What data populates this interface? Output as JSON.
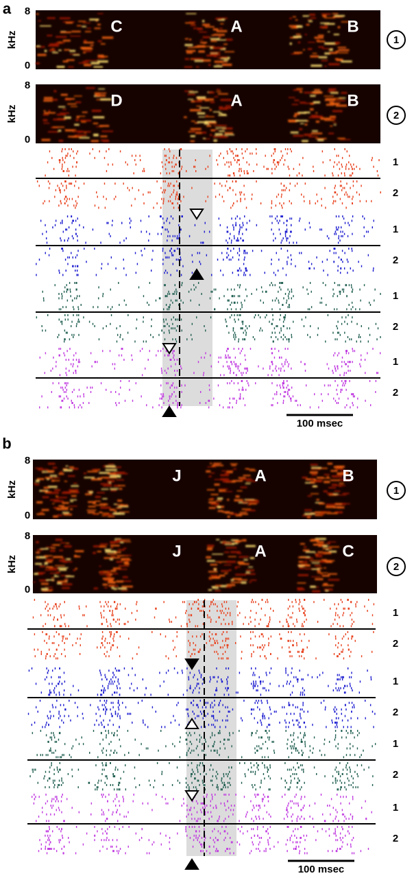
{
  "panels": [
    {
      "label": "a",
      "spectrograms": [
        {
          "axis_label": "kHz",
          "top": "8",
          "bottom": "0",
          "syllables": [
            "C",
            "A",
            "B"
          ],
          "stimulus": "1"
        },
        {
          "axis_label": "kHz",
          "top": "8",
          "bottom": "0",
          "syllables": [
            "D",
            "A",
            "B"
          ],
          "stimulus": "2"
        }
      ],
      "rasters": [
        {
          "rows": [
            "1",
            "2"
          ]
        },
        {
          "rows": [
            "1",
            "2"
          ]
        },
        {
          "rows": [
            "1",
            "2"
          ]
        },
        {
          "rows": [
            "1",
            "2"
          ]
        }
      ],
      "scale_bar": "100 msec"
    },
    {
      "label": "b",
      "spectrograms": [
        {
          "axis_label": "kHz",
          "top": "8",
          "bottom": "0",
          "syllables": [
            "J",
            "A",
            "B"
          ],
          "stimulus": "1"
        },
        {
          "axis_label": "kHz",
          "top": "8",
          "bottom": "0",
          "syllables": [
            "J",
            "A",
            "C"
          ],
          "stimulus": "2"
        }
      ],
      "rasters": [
        {
          "rows": [
            "1",
            "2"
          ]
        },
        {
          "rows": [
            "1",
            "2"
          ]
        },
        {
          "rows": [
            "1",
            "2"
          ]
        },
        {
          "rows": [
            "1",
            "2"
          ]
        }
      ],
      "scale_bar": "100 msec"
    }
  ]
}
